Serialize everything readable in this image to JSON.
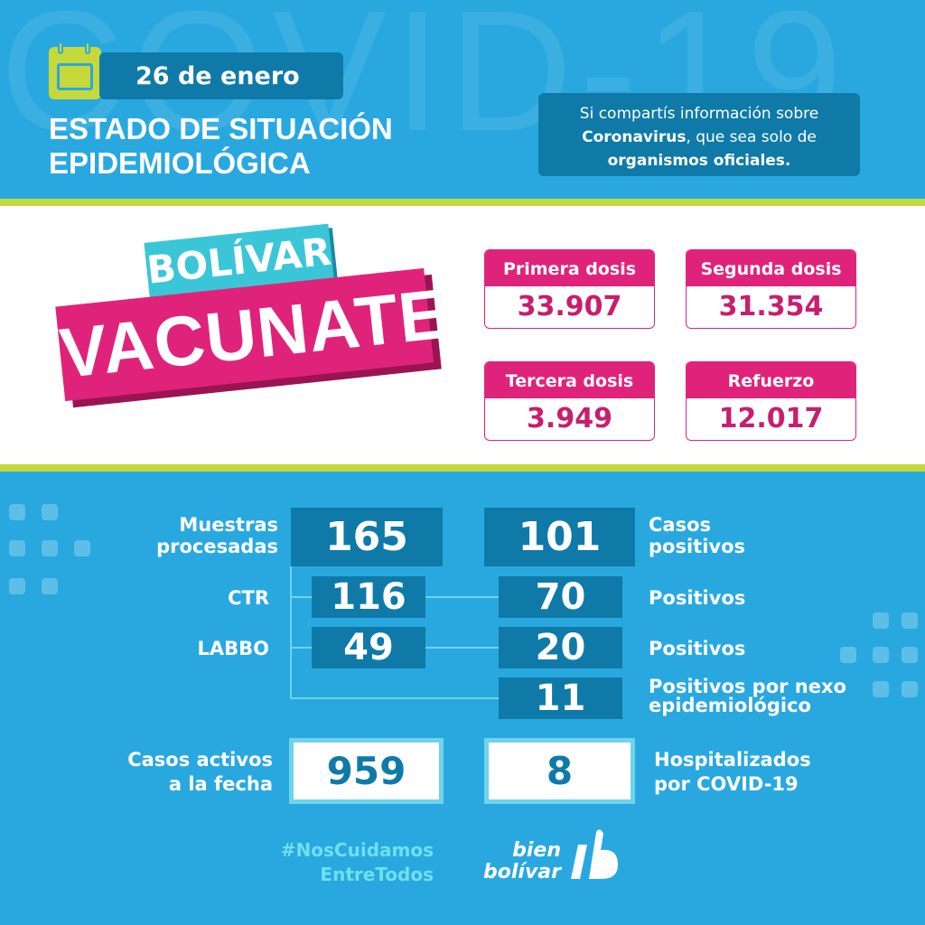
{
  "watermark": "COVID-19",
  "header": {
    "date": "26 de enero",
    "title_line1": "ESTADO DE SITUACIÓN",
    "title_line2": "EPIDEMIOLÓGICA",
    "notice": {
      "line1": "Si compartís información sobre",
      "line2_bold": "Coronavirus",
      "line2_rest": ", que sea solo de",
      "line3_bold": "organismos oficiales."
    }
  },
  "campaign": {
    "line1": "BOLÍVAR",
    "line2": "VACUNATE"
  },
  "vaccines": [
    {
      "label": "Primera dosis",
      "value": "33.907"
    },
    {
      "label": "Segunda dosis",
      "value": "31.354"
    },
    {
      "label": "Tercera dosis",
      "value": "3.949"
    },
    {
      "label": "Refuerzo",
      "value": "12.017"
    }
  ],
  "stats": {
    "muestras_label_1": "Muestras",
    "muestras_label_2": "procesadas",
    "muestras": "165",
    "casos_label_1": "Casos",
    "casos_label_2": "positivos",
    "casos": "101",
    "ctr_label": "CTR",
    "ctr": "116",
    "ctr_pos": "70",
    "ctr_pos_label": "Positivos",
    "labbo_label": "LABBO",
    "labbo": "49",
    "labbo_pos": "20",
    "labbo_pos_label": "Positivos",
    "nexo": "11",
    "nexo_label_1": "Positivos por nexo",
    "nexo_label_2": "epidemiológico",
    "activos_label_1": "Casos activos",
    "activos_label_2": "a la fecha",
    "activos": "959",
    "hosp": "8",
    "hosp_label_1": "Hospitalizados",
    "hosp_label_2": "por COVID-19"
  },
  "footer": {
    "hashtag_1": "#NosCuidamos",
    "hashtag_2": "EntreTodos",
    "brand_1": "bien",
    "brand_2": "bolívar"
  },
  "colors": {
    "blue": "#29a8e0",
    "dark_blue": "#0f7aa8",
    "lime": "#c6d83a",
    "pink": "#e0237a",
    "cyan": "#3bc6d8"
  }
}
